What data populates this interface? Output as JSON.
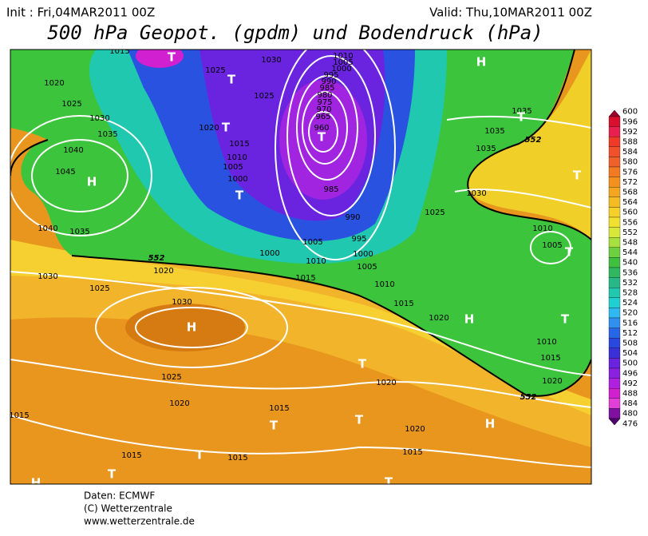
{
  "header": {
    "init": "Init : Fri,04MAR2011 00Z",
    "valid": "Valid: Thu,10MAR2011 00Z",
    "title": "500 hPa Geopot. (gpdm) und Bodendruck (hPa)"
  },
  "isobar_labels": [
    1015,
    1020,
    1025,
    1030,
    1035,
    1040,
    1045,
    1040,
    1035,
    1030,
    1025,
    1020,
    1030,
    1025,
    1020,
    1015,
    1015,
    1015,
    1020,
    1020,
    1015,
    1015,
    1025,
    1020,
    1015,
    1010,
    1005,
    1000,
    1030,
    1025,
    1010,
    1005,
    1000,
    995,
    990,
    985,
    980,
    975,
    970,
    965,
    960,
    985,
    990,
    995,
    1000,
    1005,
    1010,
    1005,
    1000,
    1010,
    1015,
    1015,
    1020,
    1025,
    1030,
    1035,
    1035,
    1035,
    1010,
    1005,
    1010,
    1015,
    1020
  ],
  "contour_labels": [
    552,
    552,
    552
  ],
  "pressure_systems": [
    "H",
    "T",
    "T",
    "T",
    "H",
    "T",
    "T",
    "T",
    "T",
    "T",
    "H",
    "H",
    "T",
    "T",
    "T",
    "T",
    "H",
    "T",
    "T",
    "T",
    "H"
  ],
  "colorbar": {
    "levels": [
      600,
      596,
      592,
      588,
      584,
      580,
      576,
      572,
      568,
      564,
      560,
      556,
      552,
      548,
      544,
      540,
      536,
      532,
      528,
      524,
      520,
      516,
      512,
      508,
      504,
      500,
      496,
      492,
      488,
      484,
      480,
      476
    ],
    "colors": [
      "#a0002a",
      "#d8102e",
      "#e82050",
      "#f03a28",
      "#f0502a",
      "#f0602a",
      "#f27a22",
      "#f4901e",
      "#f4a620",
      "#f4bc22",
      "#f4d028",
      "#f0e030",
      "#d8e83a",
      "#a8e040",
      "#6cd040",
      "#40c040",
      "#30b860",
      "#28b888",
      "#20c8b0",
      "#20d0d0",
      "#30b8f0",
      "#3090f0",
      "#2866e8",
      "#2a48e0",
      "#3a30d8",
      "#6a24e0",
      "#8a20e0",
      "#b020e0",
      "#d020d0",
      "#e040d8",
      "#8010a0",
      "#500070"
    ]
  },
  "footer": [
    "Daten: ECMWF",
    "(C) Wetterzentrale",
    "www.wetterzentrale.de"
  ]
}
